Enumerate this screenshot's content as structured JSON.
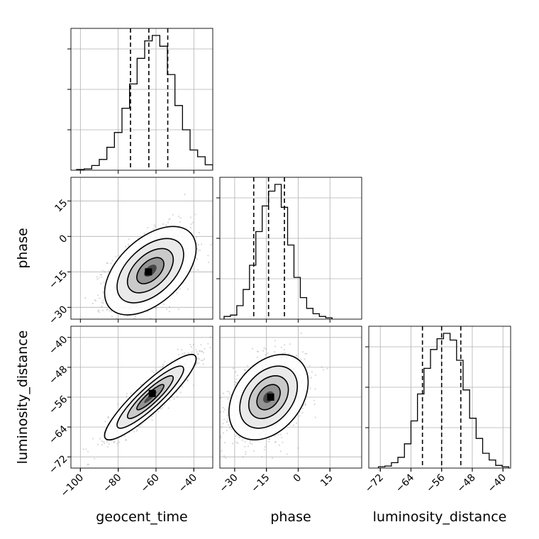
{
  "chart_data": [
    {
      "type": "histogram",
      "panel": "geocent_time",
      "xlim": [
        -105,
        -30
      ],
      "bin_width": 4,
      "bins": [
        [
          -102,
          0.005
        ],
        [
          -98,
          0.01
        ],
        [
          -94,
          0.035
        ],
        [
          -90,
          0.08
        ],
        [
          -86,
          0.17
        ],
        [
          -82,
          0.28
        ],
        [
          -78,
          0.46
        ],
        [
          -74,
          0.64
        ],
        [
          -70,
          0.83
        ],
        [
          -66,
          0.96
        ],
        [
          -62,
          1.0
        ],
        [
          -58,
          0.92
        ],
        [
          -54,
          0.71
        ],
        [
          -50,
          0.48
        ],
        [
          -46,
          0.3
        ],
        [
          -42,
          0.15
        ],
        [
          -38,
          0.1
        ],
        [
          -34,
          0.04
        ],
        [
          -30,
          0.01
        ]
      ],
      "quantiles": [
        -73.5,
        -63.8,
        -53.8
      ],
      "ytick_values": [
        0.3,
        0.6,
        0.9
      ]
    },
    {
      "type": "histogram",
      "panel": "phase",
      "xlim": [
        -37,
        30
      ],
      "bin_width": 3,
      "bins": [
        [
          -35,
          0.02
        ],
        [
          -32,
          0.03
        ],
        [
          -29,
          0.1
        ],
        [
          -26,
          0.22
        ],
        [
          -23,
          0.4
        ],
        [
          -20,
          0.65
        ],
        [
          -17,
          0.84
        ],
        [
          -14,
          0.95
        ],
        [
          -11,
          1.0
        ],
        [
          -8,
          0.83
        ],
        [
          -5,
          0.55
        ],
        [
          -2,
          0.31
        ],
        [
          1,
          0.16
        ],
        [
          4,
          0.08
        ],
        [
          7,
          0.04
        ],
        [
          10,
          0.02
        ],
        [
          13,
          0.01
        ]
      ],
      "quantiles": [
        -21,
        -14,
        -6.5
      ],
      "ytick_values": [
        0.3,
        0.6,
        0.9
      ]
    },
    {
      "type": "histogram",
      "panel": "luminosity_distance",
      "xlim": [
        -75,
        -38
      ],
      "bin_width": 1.7,
      "bins": [
        [
          -72.5,
          0.01
        ],
        [
          -70.8,
          0.015
        ],
        [
          -69.1,
          0.04
        ],
        [
          -67.4,
          0.08
        ],
        [
          -65.7,
          0.18
        ],
        [
          -64,
          0.35
        ],
        [
          -62.3,
          0.55
        ],
        [
          -60.6,
          0.74
        ],
        [
          -58.9,
          0.88
        ],
        [
          -57.2,
          0.96
        ],
        [
          -55.5,
          1.0
        ],
        [
          -53.8,
          0.95
        ],
        [
          -52.1,
          0.8
        ],
        [
          -50.4,
          0.58
        ],
        [
          -48.7,
          0.37
        ],
        [
          -47,
          0.22
        ],
        [
          -45.3,
          0.11
        ],
        [
          -43.6,
          0.06
        ],
        [
          -41.9,
          0.02
        ],
        [
          -40.2,
          0.01
        ]
      ],
      "quantiles": [
        -61,
        -56,
        -51
      ],
      "ytick_values": [
        0.3,
        0.6,
        0.9
      ]
    },
    {
      "type": "scatter-density",
      "x_param": "geocent_time",
      "y_param": "phase",
      "xlim": [
        -105,
        -30
      ],
      "ylim": [
        -35,
        25
      ],
      "mean": [
        -63,
        -14.5
      ],
      "sd": [
        11,
        8.5
      ],
      "corr": 0.5,
      "peak": [
        -64,
        -15
      ]
    },
    {
      "type": "scatter-density",
      "x_param": "geocent_time",
      "y_param": "luminosity_distance",
      "xlim": [
        -105,
        -30
      ],
      "ylim": [
        -75,
        -37
      ],
      "mean": [
        -63,
        -56
      ],
      "sd": [
        11,
        5.2
      ],
      "corr": 0.9,
      "peak": [
        -62,
        -55
      ]
    },
    {
      "type": "scatter-density",
      "x_param": "phase",
      "y_param": "luminosity_distance",
      "xlim": [
        -37,
        30
      ],
      "ylim": [
        -75,
        -37
      ],
      "mean": [
        -14,
        -56
      ],
      "sd": [
        8.5,
        5.2
      ],
      "corr": 0.35,
      "peak": [
        -13,
        -56
      ]
    }
  ],
  "axes": {
    "geocent_time": {
      "label": "geocent_time",
      "ticks": [
        -100,
        -80,
        -60,
        -40
      ],
      "tick_labels": [
        "−100",
        "−80",
        "−60",
        "−40"
      ]
    },
    "phase": {
      "label": "phase",
      "ticks": [
        -30,
        -15,
        0,
        15
      ],
      "tick_labels": [
        "−30",
        "−15",
        "0",
        "15"
      ]
    },
    "luminosity_distance": {
      "label": "luminosity_distance",
      "ticks": [
        -72,
        -64,
        -56,
        -48,
        -40
      ],
      "tick_labels": [
        "−72",
        "−64",
        "−56",
        "−48",
        "−40"
      ]
    }
  },
  "style": {
    "grid": true,
    "line_color": "#000000",
    "point_color": "#808080",
    "grid_color": "#b0b0b0",
    "quantile_style": "dashed"
  }
}
